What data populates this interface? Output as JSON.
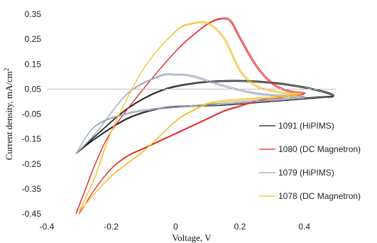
{
  "chart_data": {
    "type": "line",
    "title": "",
    "xlabel": "Voltage, V",
    "ylabel": "Current density, mA/cm",
    "ylabel_sup": "2",
    "xlim": [
      -0.4,
      0.5
    ],
    "ylim": [
      -0.45,
      0.35
    ],
    "x_ticks": [
      "-0.4",
      "-0.2",
      "0",
      "0.2",
      "0.4"
    ],
    "y_ticks": [
      "0.35",
      "0.25",
      "0.15",
      "0.05",
      "-0.05",
      "-0.15",
      "-0.25",
      "-0.35",
      "-0.45"
    ],
    "grid": false,
    "legend_position": "right",
    "series": [
      {
        "name": "1091 (HiPIMS)",
        "color": "#1a1a1a",
        "x": [
          -0.31,
          -0.25,
          -0.15,
          -0.05,
          0.05,
          0.15,
          0.25,
          0.35,
          0.45,
          0.49,
          0.45,
          0.35,
          0.25,
          0.15,
          0.05,
          -0.05,
          -0.15,
          -0.25,
          -0.31
        ],
        "y": [
          -0.21,
          -0.14,
          -0.03,
          0.04,
          0.07,
          0.08,
          0.078,
          0.065,
          0.04,
          0.02,
          0.015,
          0.005,
          -0.005,
          -0.015,
          -0.02,
          -0.03,
          -0.07,
          -0.15,
          -0.21
        ]
      },
      {
        "name": "1080 (DC Magnetron)",
        "color": "#e8262b",
        "x": [
          -0.31,
          -0.28,
          -0.25,
          -0.2,
          -0.1,
          0,
          0.05,
          0.1,
          0.14,
          0.17,
          0.2,
          0.25,
          0.3,
          0.35,
          0.4,
          0.35,
          0.3,
          0.25,
          0.2,
          0.15,
          0.1,
          0.05,
          0,
          -0.05,
          -0.1,
          -0.15,
          -0.2,
          -0.25,
          -0.3
        ],
        "y": [
          -0.45,
          -0.35,
          -0.25,
          -0.12,
          0.05,
          0.2,
          0.26,
          0.31,
          0.33,
          0.32,
          0.25,
          0.14,
          0.07,
          0.04,
          0.03,
          0.02,
          0.01,
          0.0,
          -0.02,
          -0.04,
          -0.07,
          -0.1,
          -0.13,
          -0.16,
          -0.19,
          -0.22,
          -0.27,
          -0.35,
          -0.45
        ]
      },
      {
        "name": "1079 (HiPIMS)",
        "color": "#9aa5bd",
        "x": [
          -0.31,
          -0.25,
          -0.15,
          -0.05,
          0,
          0.05,
          0.15,
          0.25,
          0.35,
          0.4,
          0.35,
          0.25,
          0.15,
          0.05,
          -0.05,
          -0.15,
          -0.25,
          -0.31
        ],
        "y": [
          -0.21,
          -0.13,
          0.03,
          0.1,
          0.105,
          0.1,
          0.06,
          0.03,
          0.02,
          0.015,
          0.01,
          0.0,
          -0.01,
          -0.02,
          -0.03,
          -0.05,
          -0.1,
          -0.21
        ]
      },
      {
        "name": "1078 (DC Magnetron)",
        "color": "#f5c02a",
        "x": [
          -0.3,
          -0.25,
          -0.2,
          -0.1,
          0,
          0.05,
          0.1,
          0.15,
          0.2,
          0.25,
          0.3,
          0.35,
          0.39,
          0.35,
          0.3,
          0.25,
          0.2,
          0.15,
          0.1,
          0.05,
          0,
          -0.1,
          -0.2,
          -0.3
        ],
        "y": [
          -0.44,
          -0.3,
          -0.12,
          0.13,
          0.28,
          0.31,
          0.31,
          0.25,
          0.12,
          0.06,
          0.04,
          0.03,
          0.03,
          0.02,
          0.015,
          0.01,
          0.005,
          0.0,
          -0.01,
          -0.04,
          -0.08,
          -0.2,
          -0.3,
          -0.44
        ]
      }
    ]
  }
}
